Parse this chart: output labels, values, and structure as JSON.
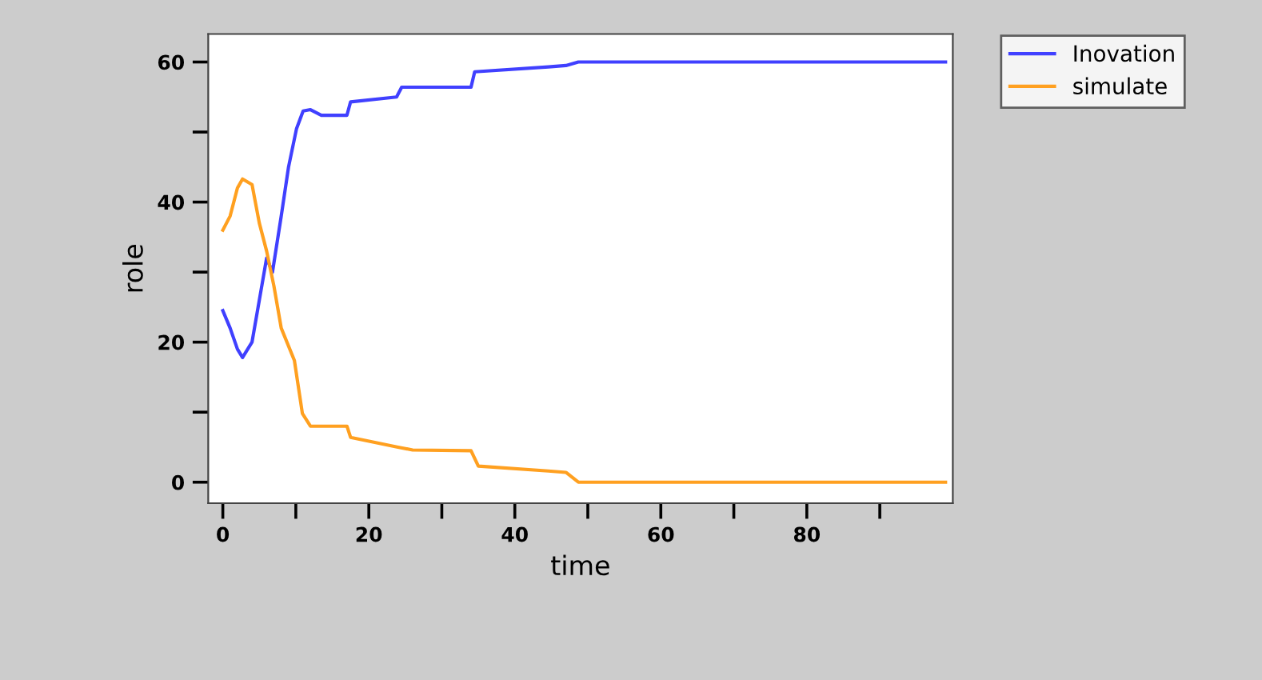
{
  "chart_data": {
    "type": "line",
    "xlabel": "time",
    "ylabel": "role",
    "legend": "top right",
    "grid": false,
    "marker": "none",
    "line_style": "solid",
    "xlim": [
      -2,
      100
    ],
    "ylim": [
      -3,
      64
    ],
    "xticks": [
      0,
      {
        "value": 10,
        "label": null
      },
      20,
      {
        "value": 30,
        "label": null
      },
      40,
      {
        "value": 50,
        "label": null
      },
      60,
      {
        "value": 70,
        "label": null
      },
      80,
      {
        "value": 90,
        "label": null
      }
    ],
    "yticks": [
      0,
      {
        "value": 10,
        "label": null
      },
      20,
      {
        "value": 30,
        "label": null
      },
      40,
      {
        "value": 50,
        "label": null
      },
      60
    ],
    "series": [
      {
        "name": "Inovation",
        "color": "#4040ff",
        "x": [
          0,
          1,
          2,
          2.7,
          4,
          5,
          6,
          6.8,
          8,
          9,
          10.1,
          11,
          12,
          13.5,
          17,
          17.5,
          23.8,
          24.5,
          34,
          34.5,
          44.6,
          47,
          48.7,
          99
        ],
        "values": [
          24.5,
          22,
          19,
          17.8,
          20,
          26,
          32,
          30,
          38,
          45,
          50.5,
          53,
          53.2,
          52.4,
          52.4,
          54.3,
          55,
          56.4,
          56.4,
          58.6,
          59.3,
          59.5,
          60,
          60
        ]
      },
      {
        "name": "simulate",
        "color": "#ffa020",
        "x": [
          0,
          1,
          2,
          2.7,
          4,
          5,
          6,
          7,
          8,
          9.8,
          10.9,
          12,
          17,
          17.5,
          24,
          26,
          34,
          35,
          44.6,
          47,
          48.7,
          99
        ],
        "values": [
          36,
          38,
          42,
          43.3,
          42.5,
          37,
          33,
          28,
          22,
          17.4,
          9.8,
          8,
          8,
          6.4,
          5,
          4.6,
          4.5,
          2.3,
          1.6,
          1.4,
          0,
          0
        ]
      }
    ]
  }
}
